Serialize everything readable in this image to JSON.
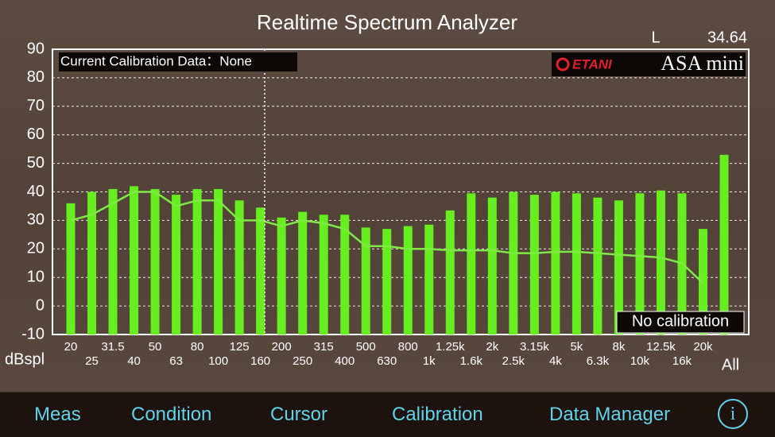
{
  "header": {
    "title": "Realtime Spectrum Analyzer",
    "channel": "L",
    "level": "34.64",
    "brand": "ETANI",
    "model": "ASA mini"
  },
  "tabs": [
    "Meas",
    "Condition",
    "Cursor",
    "Calibration",
    "Data Manager",
    "i"
  ],
  "chart_data": {
    "type": "bar",
    "y_label": "dBspl",
    "annotations": [
      "Current Calibration Data：None",
      "No calibration"
    ],
    "categories": [
      "20",
      "25",
      "31.5",
      "40",
      "50",
      "63",
      "80",
      "100",
      "125",
      "160",
      "200",
      "250",
      "315",
      "400",
      "500",
      "630",
      "800",
      "1k",
      "1.25k",
      "1.6k",
      "2k",
      "2.5k",
      "3.15k",
      "4k",
      "5k",
      "6.3k",
      "8k",
      "10k",
      "12.5k",
      "16k",
      "20k",
      "All"
    ],
    "series": [
      {
        "type": "bar",
        "color": "#66ee1e",
        "values": [
          36,
          40,
          41,
          42,
          41,
          39,
          41,
          41,
          37,
          34.5,
          31,
          33,
          32,
          32,
          27.5,
          27,
          28,
          28.5,
          33.5,
          39.5,
          38,
          40,
          39,
          40,
          39.5,
          38,
          37,
          39.5,
          40.5,
          39.5,
          27,
          53
        ]
      },
      {
        "type": "line",
        "color": "#7fea45",
        "values": [
          30,
          32,
          36,
          40,
          40,
          35,
          37,
          37,
          30,
          30,
          28,
          30,
          29,
          27,
          21,
          21,
          20,
          20,
          19.5,
          19.5,
          19.5,
          18.5,
          18.5,
          19,
          19,
          18.5,
          18,
          17.5,
          17,
          15,
          8,
          null
        ]
      }
    ],
    "ylim": [
      -10,
      90
    ],
    "yticks": [
      -10,
      0,
      10,
      20,
      30,
      40,
      50,
      60,
      70,
      80,
      90
    ],
    "grid": true
  }
}
